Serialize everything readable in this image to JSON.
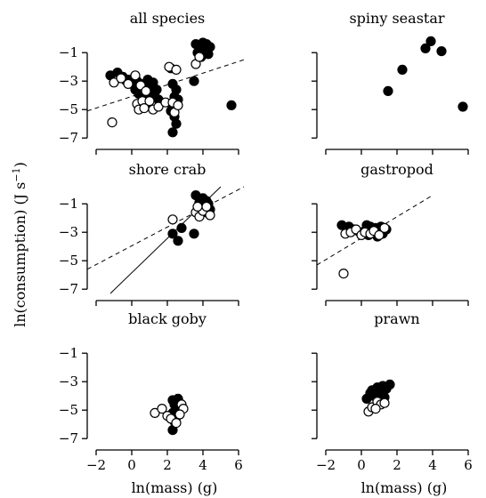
{
  "figure": {
    "ylabel": "ln(consumption) (J s",
    "ylabel_sup": "−1",
    "ylabel_close": ")",
    "xlabel": "ln(mass) (g)"
  },
  "chart_data": [
    {
      "type": "scatter",
      "title": "all species",
      "xlim": [
        -2.5,
        6.5
      ],
      "ylim": [
        -7.3,
        0.2
      ],
      "xticks": [
        -2,
        0,
        2,
        4,
        6
      ],
      "yticks": [
        -1,
        -3,
        -5,
        -7
      ],
      "show_xticklabels": false,
      "show_yticklabels": true,
      "lines": [
        {
          "style": "dashed",
          "x": [
            -2.5,
            6.3
          ],
          "y": [
            -5.1,
            -1.5
          ]
        }
      ],
      "series": [
        {
          "marker": "filled",
          "points": [
            [
              -1.2,
              -2.6
            ],
            [
              -0.8,
              -2.4
            ],
            [
              -0.5,
              -2.7
            ],
            [
              -0.2,
              -2.9
            ],
            [
              0.1,
              -2.8
            ],
            [
              0.3,
              -3.0
            ],
            [
              0.5,
              -3.2
            ],
            [
              0.7,
              -3.4
            ],
            [
              0.9,
              -2.9
            ],
            [
              0.2,
              -3.6
            ],
            [
              0.4,
              -3.9
            ],
            [
              0.6,
              -4.1
            ],
            [
              0.8,
              -3.8
            ],
            [
              1.0,
              -3.5
            ],
            [
              1.2,
              -3.1
            ],
            [
              1.3,
              -3.8
            ],
            [
              1.5,
              -4.3
            ],
            [
              1.4,
              -3.6
            ],
            [
              1.1,
              -4.2
            ],
            [
              0.6,
              -3.4
            ],
            [
              0.0,
              -3.2
            ],
            [
              -0.3,
              -3.0
            ],
            [
              0.9,
              -4.6
            ],
            [
              2.3,
              -3.2
            ],
            [
              2.5,
              -3.6
            ],
            [
              2.4,
              -4.1
            ],
            [
              2.3,
              -4.8
            ],
            [
              2.2,
              -5.1
            ],
            [
              2.4,
              -5.5
            ],
            [
              2.5,
              -6.0
            ],
            [
              2.3,
              -6.6
            ],
            [
              2.6,
              -4.3
            ],
            [
              2.2,
              -2.1
            ],
            [
              3.5,
              -3.0
            ],
            [
              3.7,
              -1.0
            ],
            [
              3.8,
              -0.5
            ],
            [
              3.9,
              -0.7
            ],
            [
              4.0,
              -0.3
            ],
            [
              4.1,
              -0.9
            ],
            [
              4.2,
              -0.4
            ],
            [
              4.3,
              -1.1
            ],
            [
              3.9,
              -1.3
            ],
            [
              3.6,
              -0.4
            ],
            [
              4.4,
              -0.6
            ],
            [
              5.6,
              -4.7
            ]
          ]
        },
        {
          "marker": "open",
          "points": [
            [
              -1.1,
              -5.9
            ],
            [
              -1.0,
              -3.1
            ],
            [
              -0.6,
              -2.8
            ],
            [
              -0.2,
              -3.2
            ],
            [
              0.2,
              -2.6
            ],
            [
              0.5,
              -3.3
            ],
            [
              0.8,
              -3.7
            ],
            [
              0.3,
              -4.6
            ],
            [
              0.6,
              -4.4
            ],
            [
              0.4,
              -5.0
            ],
            [
              0.7,
              -4.9
            ],
            [
              1.0,
              -4.4
            ],
            [
              1.2,
              -5.0
            ],
            [
              1.5,
              -4.8
            ],
            [
              1.9,
              -4.5
            ],
            [
              2.3,
              -4.5
            ],
            [
              2.1,
              -2.0
            ],
            [
              2.5,
              -2.2
            ],
            [
              2.4,
              -5.2
            ],
            [
              2.6,
              -4.7
            ],
            [
              3.6,
              -1.8
            ],
            [
              3.8,
              -1.3
            ]
          ]
        }
      ]
    },
    {
      "type": "scatter",
      "title": "spiny seastar",
      "xlim": [
        -2.5,
        6.5
      ],
      "ylim": [
        -7.3,
        0.2
      ],
      "xticks": [
        -2,
        0,
        2,
        4,
        6
      ],
      "yticks": [
        -1,
        -3,
        -5,
        -7
      ],
      "show_xticklabels": false,
      "show_yticklabels": false,
      "lines": [],
      "series": [
        {
          "marker": "filled",
          "points": [
            [
              1.5,
              -3.7
            ],
            [
              2.3,
              -2.2
            ],
            [
              3.6,
              -0.7
            ],
            [
              3.9,
              -0.2
            ],
            [
              4.5,
              -0.9
            ],
            [
              5.7,
              -4.8
            ]
          ]
        }
      ]
    },
    {
      "type": "scatter",
      "title": "shore crab",
      "xlim": [
        -2.5,
        6.5
      ],
      "ylim": [
        -7.3,
        0.2
      ],
      "xticks": [
        -2,
        0,
        2,
        4,
        6
      ],
      "yticks": [
        -1,
        -3,
        -5,
        -7
      ],
      "show_xticklabels": false,
      "show_yticklabels": true,
      "lines": [
        {
          "style": "dashed",
          "x": [
            -2.5,
            6.3
          ],
          "y": [
            -5.6,
            0.2
          ]
        },
        {
          "style": "solid",
          "x": [
            -1.2,
            5.0
          ],
          "y": [
            -7.3,
            0.2
          ]
        }
      ],
      "series": [
        {
          "marker": "filled",
          "points": [
            [
              2.3,
              -3.1
            ],
            [
              2.6,
              -3.6
            ],
            [
              2.8,
              -2.7
            ],
            [
              3.5,
              -3.1
            ],
            [
              3.6,
              -0.4
            ],
            [
              3.8,
              -0.9
            ],
            [
              3.9,
              -1.3
            ],
            [
              4.0,
              -0.6
            ],
            [
              4.1,
              -1.1
            ],
            [
              4.2,
              -1.6
            ],
            [
              4.3,
              -1.0
            ],
            [
              4.4,
              -1.4
            ],
            [
              3.9,
              -0.7
            ],
            [
              4.2,
              -0.8
            ]
          ]
        },
        {
          "marker": "open",
          "points": [
            [
              2.3,
              -2.1
            ],
            [
              3.6,
              -1.6
            ],
            [
              3.8,
              -1.9
            ],
            [
              4.0,
              -1.5
            ],
            [
              4.2,
              -1.2
            ],
            [
              4.4,
              -1.8
            ],
            [
              3.7,
              -1.2
            ]
          ]
        }
      ]
    },
    {
      "type": "scatter",
      "title": "gastropod",
      "xlim": [
        -2.5,
        6.5
      ],
      "ylim": [
        -7.3,
        0.2
      ],
      "xticks": [
        -2,
        0,
        2,
        4,
        6
      ],
      "yticks": [
        -1,
        -3,
        -5,
        -7
      ],
      "show_xticklabels": false,
      "show_yticklabels": false,
      "lines": [
        {
          "style": "dashed",
          "x": [
            -2.5,
            4.0
          ],
          "y": [
            -5.3,
            -0.4
          ]
        }
      ],
      "series": [
        {
          "marker": "filled",
          "points": [
            [
              -1.1,
              -2.5
            ],
            [
              -0.7,
              -2.6
            ],
            [
              -0.4,
              -2.8
            ],
            [
              -0.1,
              -3.0
            ],
            [
              0.2,
              -2.9
            ],
            [
              0.4,
              -3.2
            ],
            [
              0.6,
              -3.0
            ],
            [
              0.8,
              -2.7
            ],
            [
              1.0,
              -2.9
            ],
            [
              1.2,
              -3.1
            ],
            [
              1.4,
              -2.8
            ],
            [
              0.5,
              -2.6
            ],
            [
              0.9,
              -3.3
            ],
            [
              1.1,
              -2.6
            ],
            [
              0.3,
              -2.5
            ]
          ]
        },
        {
          "marker": "open",
          "points": [
            [
              -1.0,
              -5.9
            ],
            [
              -0.9,
              -3.1
            ],
            [
              -0.6,
              -3.0
            ],
            [
              -0.3,
              -2.8
            ],
            [
              0.0,
              -3.2
            ],
            [
              0.2,
              -3.0
            ],
            [
              0.5,
              -3.1
            ],
            [
              0.7,
              -2.9
            ],
            [
              1.0,
              -3.2
            ],
            [
              1.3,
              -2.7
            ]
          ]
        }
      ]
    },
    {
      "type": "scatter",
      "title": "black goby",
      "xlim": [
        -2.5,
        6.5
      ],
      "ylim": [
        -7.3,
        0.2
      ],
      "xticks": [
        -2,
        0,
        2,
        4,
        6
      ],
      "yticks": [
        -1,
        -3,
        -5,
        -7
      ],
      "show_xticklabels": true,
      "show_yticklabels": true,
      "lines": [],
      "series": [
        {
          "marker": "filled",
          "points": [
            [
              2.3,
              -4.3
            ],
            [
              2.4,
              -4.6
            ],
            [
              2.5,
              -4.9
            ],
            [
              2.3,
              -5.2
            ],
            [
              2.5,
              -5.5
            ],
            [
              2.6,
              -5.0
            ],
            [
              2.7,
              -4.5
            ],
            [
              2.4,
              -5.8
            ],
            [
              2.3,
              -6.4
            ],
            [
              2.6,
              -4.2
            ]
          ]
        },
        {
          "marker": "open",
          "points": [
            [
              1.3,
              -5.2
            ],
            [
              1.7,
              -4.9
            ],
            [
              2.0,
              -5.4
            ],
            [
              2.2,
              -5.6
            ],
            [
              2.8,
              -4.6
            ],
            [
              2.9,
              -4.9
            ],
            [
              2.7,
              -5.3
            ],
            [
              2.5,
              -5.9
            ]
          ]
        }
      ]
    },
    {
      "type": "scatter",
      "title": "prawn",
      "xlim": [
        -2.5,
        6.5
      ],
      "ylim": [
        -7.3,
        0.2
      ],
      "xticks": [
        -2,
        0,
        2,
        4,
        6
      ],
      "yticks": [
        -1,
        -3,
        -5,
        -7
      ],
      "show_xticklabels": true,
      "show_yticklabels": false,
      "lines": [],
      "series": [
        {
          "marker": "filled",
          "points": [
            [
              0.3,
              -4.2
            ],
            [
              0.5,
              -3.8
            ],
            [
              0.7,
              -4.0
            ],
            [
              0.8,
              -3.6
            ],
            [
              0.9,
              -3.4
            ],
            [
              1.0,
              -3.7
            ],
            [
              1.1,
              -3.9
            ],
            [
              1.2,
              -3.3
            ],
            [
              1.4,
              -3.5
            ],
            [
              1.6,
              -3.2
            ],
            [
              0.6,
              -3.6
            ],
            [
              1.3,
              -4.1
            ]
          ]
        },
        {
          "marker": "open",
          "points": [
            [
              0.4,
              -5.1
            ],
            [
              0.6,
              -4.8
            ],
            [
              0.9,
              -4.4
            ],
            [
              1.1,
              -4.6
            ],
            [
              1.3,
              -4.5
            ],
            [
              0.8,
              -4.9
            ]
          ]
        }
      ]
    }
  ]
}
